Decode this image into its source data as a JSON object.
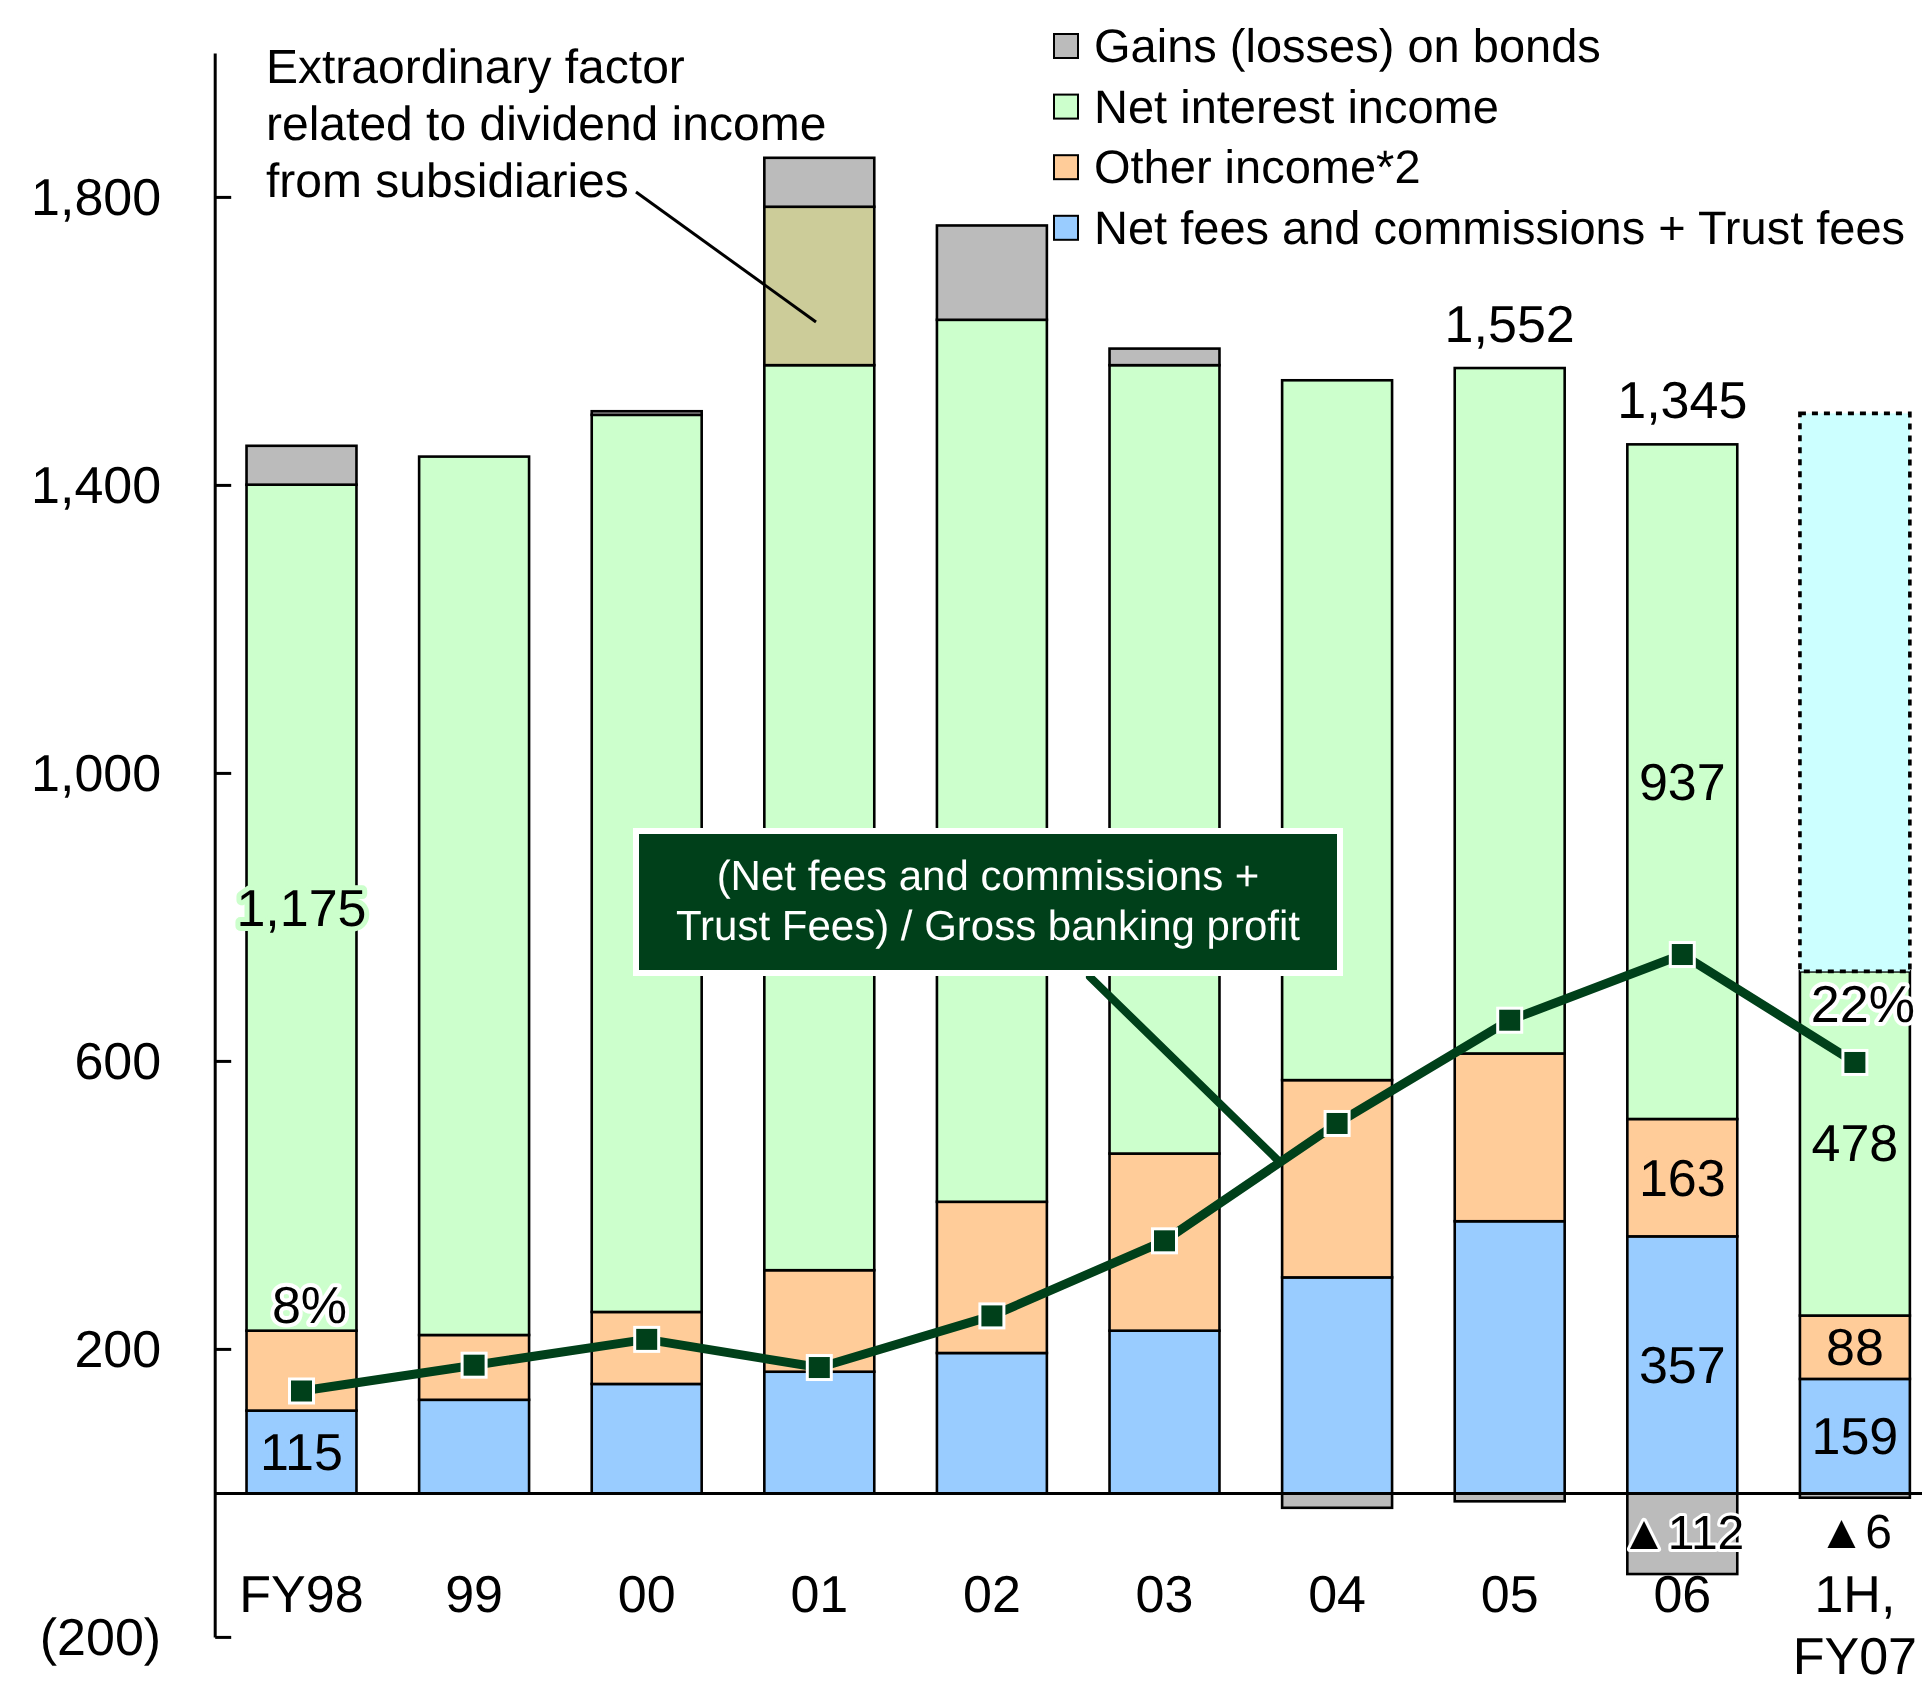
{
  "chart_data": {
    "type": "bar",
    "stacked": true,
    "categories": [
      "FY98",
      "99",
      "00",
      "01",
      "02",
      "03",
      "04",
      "05",
      "06",
      "1H,\nFY07"
    ],
    "ylim": [
      -200,
      2000
    ],
    "yticks": [
      {
        "value": -200,
        "label": "(200)"
      },
      200,
      600,
      {
        "value": 1000,
        "label": "1,000"
      },
      {
        "value": 1400,
        "label": "1,400"
      },
      {
        "value": 1800,
        "label": "1,800"
      }
    ],
    "y2lim": [
      -2.5,
      65
    ],
    "series": [
      {
        "name": "Net fees and commissions + Trust fees",
        "color": "#99ccff",
        "values": [
          115,
          130,
          152,
          169,
          195,
          226,
          300,
          378,
          357,
          159
        ],
        "value_labels": [
          "115",
          null,
          null,
          null,
          null,
          null,
          null,
          null,
          "357",
          "159"
        ]
      },
      {
        "name": "Other income*2",
        "color": "#ffcc99",
        "values": [
          111,
          90,
          100,
          141,
          210,
          246,
          274,
          233,
          163,
          88
        ],
        "value_labels": [
          null,
          null,
          null,
          null,
          null,
          null,
          null,
          null,
          "163",
          "88"
        ]
      },
      {
        "name": "Net interest income",
        "color": "#ccffcc",
        "values": [
          1175,
          1220,
          1246,
          1257,
          1225,
          1095,
          972,
          952,
          937,
          478
        ],
        "value_labels": [
          "1,175",
          null,
          null,
          null,
          null,
          null,
          null,
          null,
          "937",
          "478"
        ]
      },
      {
        "color": "#cccc99",
        "values": [
          null,
          null,
          null,
          220,
          null,
          null,
          null,
          null,
          null,
          null
        ]
      },
      {
        "name": "Gains (losses) on bonds",
        "color": "#bbbbbb",
        "values": [
          54,
          null,
          5,
          68,
          131,
          23,
          -20,
          -11,
          -112,
          -6
        ]
      },
      {
        "color": "#ccffff",
        "line_style": "dotted",
        "values": [
          null,
          null,
          null,
          null,
          null,
          null,
          null,
          null,
          null,
          775
        ]
      },
      {
        "name": "(Net fees and commissions +\nTrust Fees) / Gross banking profit",
        "type": "line",
        "axis": "y2",
        "marker": "square",
        "color": "#00401a",
        "values": [
          8,
          9.1,
          10.2,
          9,
          11.2,
          14.4,
          19.4,
          23.8,
          26.6,
          22
        ],
        "value_labels": [
          "8%",
          null,
          null,
          null,
          null,
          null,
          null,
          null,
          null,
          "22%"
        ]
      }
    ],
    "totals": [
      null,
      null,
      null,
      null,
      null,
      null,
      null,
      "1,552",
      "1,345",
      null
    ],
    "legend": "top right",
    "annotations": [
      "Extraordinary factor\nrelated to dividend income\nfrom subsidiaries",
      {
        "text": "▲112",
        "x": "06",
        "y": -112
      },
      {
        "text": "▲6",
        "x": "1H,\nFY07",
        "y": -6
      }
    ]
  }
}
